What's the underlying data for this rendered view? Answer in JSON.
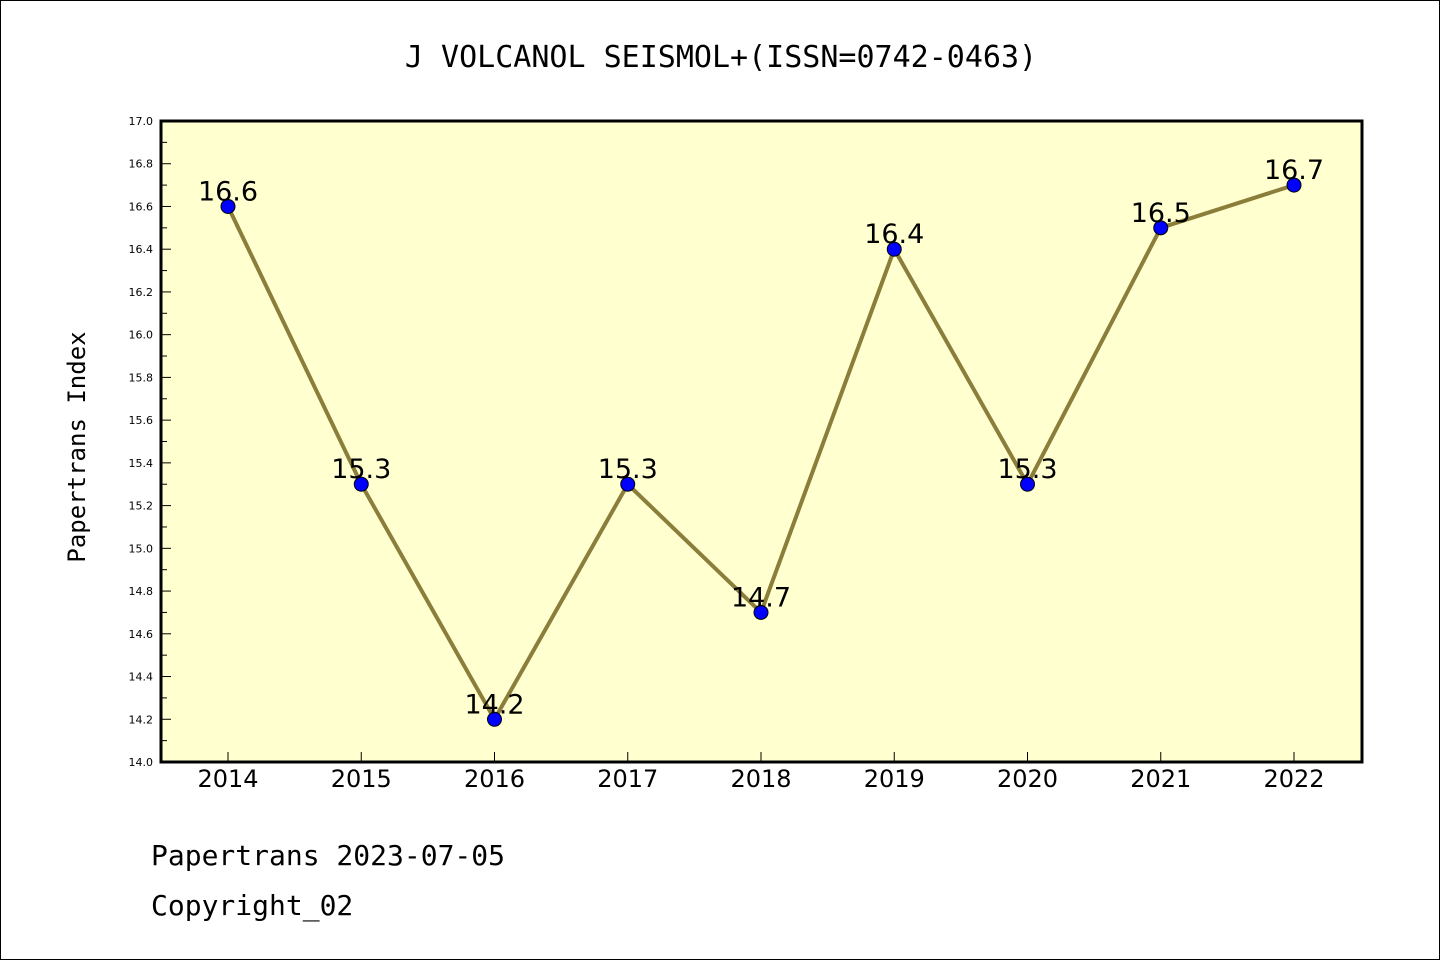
{
  "chart_data": {
    "type": "line",
    "title": "J VOLCANOL SEISMOL+(ISSN=0742-0463)",
    "xlabel": "",
    "ylabel": "Papertrans Index",
    "categories": [
      "2014",
      "2015",
      "2016",
      "2017",
      "2018",
      "2019",
      "2020",
      "2021",
      "2022"
    ],
    "values": [
      16.6,
      15.3,
      14.2,
      15.3,
      14.7,
      16.4,
      15.3,
      16.5,
      16.7
    ],
    "data_labels": [
      "16.6",
      "15.3",
      "14.2",
      "15.3",
      "14.7",
      "16.4",
      "15.3",
      "16.5",
      "16.7"
    ],
    "ylim": [
      14.0,
      17.0
    ],
    "yticks": [
      "14.0",
      "14.2",
      "14.4",
      "14.6",
      "14.8",
      "15.0",
      "15.2",
      "15.4",
      "15.6",
      "15.8",
      "16.0",
      "16.2",
      "16.4",
      "16.6",
      "16.8",
      "17.0"
    ],
    "grid": false,
    "colors": {
      "plot_background": "#ffffd0",
      "line": "#8b7d3a",
      "marker": "#0000ff"
    }
  },
  "footer": {
    "line1": "Papertrans 2023-07-05",
    "line2": "Copyright_02"
  }
}
